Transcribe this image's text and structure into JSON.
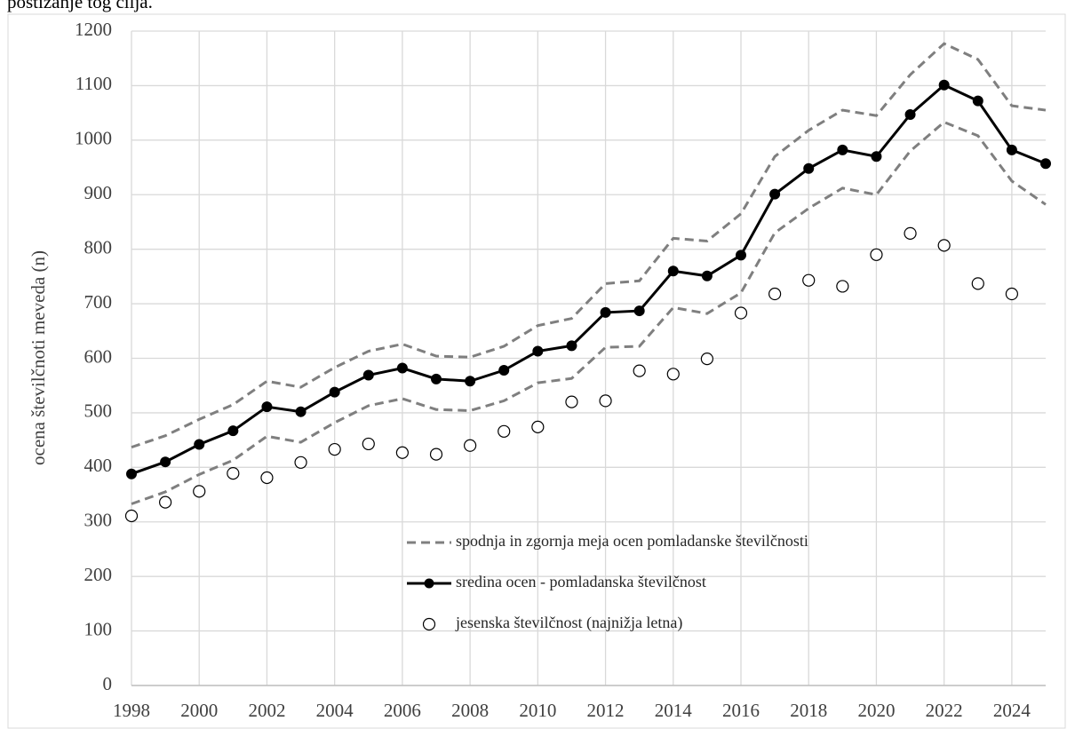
{
  "page_text": "postizanje tog cilja.",
  "chart_data": {
    "type": "line",
    "y_label": "ocena številčnoti meveda (n)",
    "x": [
      1998,
      1999,
      2000,
      2001,
      2002,
      2003,
      2004,
      2005,
      2006,
      2007,
      2008,
      2009,
      2010,
      2011,
      2012,
      2013,
      2014,
      2015,
      2016,
      2017,
      2018,
      2019,
      2020,
      2021,
      2022,
      2023,
      2024,
      2025
    ],
    "xlim": [
      1998,
      2025
    ],
    "xticks": [
      1998,
      2000,
      2002,
      2004,
      2006,
      2008,
      2010,
      2012,
      2014,
      2016,
      2018,
      2020,
      2022,
      2024
    ],
    "ylim": [
      0,
      1200
    ],
    "yticks": [
      0,
      100,
      200,
      300,
      400,
      500,
      600,
      700,
      800,
      900,
      1000,
      1100,
      1200
    ],
    "grid": true,
    "legend": "bottom-center",
    "series": [
      {
        "name": "spodnja in zgornja meja ocen pomladanske številčnosti",
        "color": "#7f7f7f",
        "style": "dashed",
        "values": [
          333,
          355,
          387,
          413,
          457,
          446,
          482,
          513,
          526,
          506,
          504,
          522,
          555,
          563,
          620,
          622,
          693,
          682,
          720,
          830,
          875,
          912,
          900,
          980,
          1033,
          1008,
          925,
          882
        ]
      },
      {
        "color": "#7f7f7f",
        "style": "dashed",
        "values": [
          437,
          458,
          488,
          515,
          558,
          547,
          583,
          613,
          626,
          604,
          602,
          622,
          660,
          673,
          737,
          742,
          820,
          815,
          865,
          970,
          1018,
          1055,
          1045,
          1120,
          1177,
          1148,
          1063,
          1055
        ]
      },
      {
        "name": "sredina ocen - pomladanska številčnost",
        "color": "#000000",
        "style": "line-marker",
        "values": [
          388,
          410,
          442,
          467,
          511,
          502,
          538,
          569,
          582,
          562,
          558,
          578,
          613,
          623,
          684,
          687,
          760,
          751,
          789,
          901,
          948,
          982,
          970,
          1047,
          1101,
          1072,
          982,
          957
        ]
      },
      {
        "name": "jesenska številčnost (najnižja letna)",
        "color": "#000000",
        "style": "open-marker",
        "values": [
          311,
          336,
          356,
          389,
          381,
          409,
          433,
          443,
          427,
          424,
          440,
          466,
          474,
          520,
          522,
          577,
          571,
          599,
          683,
          718,
          743,
          732,
          790,
          829,
          807,
          737,
          718,
          null
        ]
      }
    ]
  }
}
